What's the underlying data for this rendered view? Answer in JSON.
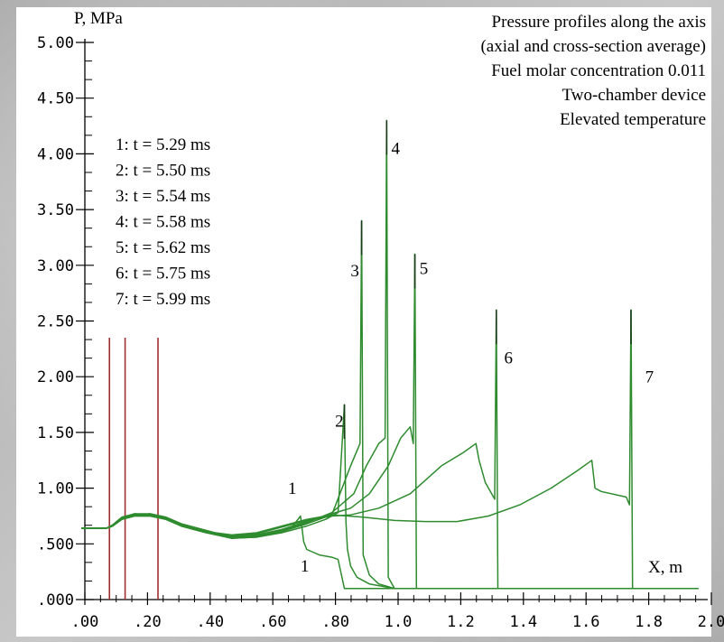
{
  "chart_data": {
    "type": "line",
    "title_lines": [
      "Pressure profiles along the axis",
      "(axial and cross-section average)",
      "Fuel molar concentration 0.011",
      "Two-chamber device",
      "Elevated temperature"
    ],
    "ylabel": "P, MPa",
    "xlabel": "X, m",
    "xlim": [
      0,
      2.0
    ],
    "ylim": [
      0,
      5.0
    ],
    "x_ticks": [
      ".00",
      ".20",
      ".40",
      ".60",
      ".80",
      "1.0",
      "1.2",
      "1.4",
      "1.6",
      "1.8",
      "2.0"
    ],
    "x_tick_values": [
      0,
      0.2,
      0.4,
      0.6,
      0.8,
      1.0,
      1.2,
      1.4,
      1.6,
      1.8,
      2.0
    ],
    "y_ticks": [
      ".000",
      ".500",
      "1.00",
      "1.50",
      "2.00",
      "2.50",
      "3.00",
      "3.50",
      "4.00",
      "4.50",
      "5.00"
    ],
    "y_tick_values": [
      0,
      0.5,
      1.0,
      1.5,
      2.0,
      2.5,
      3.0,
      3.5,
      4.0,
      4.5,
      5.0
    ],
    "legend": [
      "1: t = 5.29 ms",
      "2: t = 5.50 ms",
      "3: t = 5.54 ms",
      "4: t = 5.58 ms",
      "5: t = 5.62 ms",
      "6: t = 5.75 ms",
      "7: t = 5.99 ms"
    ],
    "vertical_markers": [
      0.09,
      0.14,
      0.245
    ],
    "marker_top": 2.35,
    "colors": {
      "line": "#2e8b2e",
      "marker": "#a03030",
      "spike_tip": "#1a3a1a"
    },
    "series": [
      {
        "label": "1",
        "label_at": [
          0.66,
          0.95
        ],
        "x": [
          0,
          0.08,
          0.1,
          0.13,
          0.17,
          0.22,
          0.27,
          0.32,
          0.4,
          0.48,
          0.55,
          0.62,
          0.67,
          0.7,
          0.71,
          0.72,
          0.76,
          0.8,
          0.82,
          0.84,
          1.0,
          1.2,
          1.4,
          1.6,
          1.8,
          1.97
        ],
        "y": [
          0.64,
          0.64,
          0.66,
          0.73,
          0.76,
          0.77,
          0.74,
          0.68,
          0.62,
          0.56,
          0.57,
          0.6,
          0.64,
          0.75,
          0.52,
          0.45,
          0.4,
          0.38,
          0.36,
          0.1,
          0.1,
          0.1,
          0.1,
          0.1,
          0.1,
          0.1
        ]
      },
      {
        "label": "1",
        "label_at": [
          0.7,
          0.25
        ],
        "x": [],
        "y": []
      },
      {
        "label": "2",
        "label_at": [
          0.81,
          1.55
        ],
        "x": [
          0,
          0.08,
          0.1,
          0.13,
          0.17,
          0.22,
          0.27,
          0.32,
          0.4,
          0.48,
          0.56,
          0.64,
          0.72,
          0.78,
          0.82,
          0.84,
          0.845,
          0.85,
          0.86,
          0.88,
          0.92,
          1.0,
          1.2,
          1.5,
          1.8,
          1.97
        ],
        "y": [
          0.64,
          0.64,
          0.66,
          0.73,
          0.77,
          0.77,
          0.74,
          0.67,
          0.61,
          0.55,
          0.56,
          0.6,
          0.66,
          0.72,
          0.78,
          1.75,
          0.7,
          0.45,
          0.3,
          0.2,
          0.14,
          0.1,
          0.1,
          0.1,
          0.1,
          0.1
        ]
      },
      {
        "label": "3",
        "label_at": [
          0.86,
          2.9
        ],
        "x": [
          0,
          0.08,
          0.1,
          0.13,
          0.17,
          0.22,
          0.27,
          0.32,
          0.4,
          0.48,
          0.56,
          0.64,
          0.72,
          0.8,
          0.86,
          0.89,
          0.895,
          0.9,
          0.92,
          0.95,
          1.0,
          1.3,
          1.6,
          1.97
        ],
        "y": [
          0.64,
          0.64,
          0.67,
          0.74,
          0.77,
          0.76,
          0.73,
          0.66,
          0.6,
          0.55,
          0.56,
          0.61,
          0.68,
          0.76,
          1.2,
          1.4,
          3.4,
          0.4,
          0.22,
          0.14,
          0.1,
          0.1,
          0.1,
          0.1
        ]
      },
      {
        "label": "4",
        "label_at": [
          0.99,
          4.0
        ],
        "x": [
          0,
          0.08,
          0.1,
          0.13,
          0.17,
          0.22,
          0.27,
          0.32,
          0.4,
          0.48,
          0.56,
          0.64,
          0.72,
          0.8,
          0.87,
          0.91,
          0.95,
          0.97,
          0.975,
          0.98,
          1.0,
          1.2,
          1.5,
          1.97
        ],
        "y": [
          0.64,
          0.64,
          0.66,
          0.73,
          0.76,
          0.76,
          0.73,
          0.66,
          0.6,
          0.55,
          0.57,
          0.62,
          0.69,
          0.78,
          0.95,
          1.2,
          1.4,
          1.45,
          4.3,
          0.2,
          0.1,
          0.1,
          0.1,
          0.1
        ]
      },
      {
        "label": "5",
        "label_at": [
          1.08,
          2.92
        ],
        "x": [
          0,
          0.08,
          0.1,
          0.13,
          0.17,
          0.22,
          0.27,
          0.32,
          0.4,
          0.48,
          0.56,
          0.64,
          0.72,
          0.8,
          0.86,
          0.92,
          0.98,
          1.02,
          1.05,
          1.06,
          1.065,
          1.07,
          1.2,
          1.5,
          1.97
        ],
        "y": [
          0.64,
          0.64,
          0.66,
          0.73,
          0.76,
          0.76,
          0.73,
          0.66,
          0.6,
          0.56,
          0.58,
          0.63,
          0.7,
          0.77,
          0.82,
          0.95,
          1.2,
          1.45,
          1.55,
          1.4,
          3.1,
          0.1,
          0.1,
          0.1,
          0.1
        ]
      },
      {
        "label": "6",
        "label_at": [
          1.35,
          2.12
        ],
        "x": [
          0,
          0.08,
          0.1,
          0.13,
          0.17,
          0.22,
          0.27,
          0.32,
          0.4,
          0.48,
          0.56,
          0.64,
          0.72,
          0.8,
          0.86,
          0.95,
          1.05,
          1.15,
          1.22,
          1.26,
          1.27,
          1.29,
          1.31,
          1.32,
          1.325,
          1.33,
          1.5,
          1.97
        ],
        "y": [
          0.64,
          0.64,
          0.66,
          0.72,
          0.75,
          0.75,
          0.72,
          0.66,
          0.6,
          0.57,
          0.59,
          0.65,
          0.71,
          0.75,
          0.76,
          0.82,
          0.95,
          1.2,
          1.32,
          1.4,
          1.25,
          1.05,
          0.95,
          0.9,
          2.6,
          0.1,
          0.1,
          0.1
        ]
      },
      {
        "label": "7",
        "label_at": [
          1.8,
          1.95
        ],
        "x": [
          0,
          0.08,
          0.1,
          0.13,
          0.17,
          0.22,
          0.27,
          0.32,
          0.4,
          0.48,
          0.56,
          0.64,
          0.72,
          0.8,
          0.9,
          1.0,
          1.1,
          1.2,
          1.3,
          1.4,
          1.5,
          1.58,
          1.63,
          1.64,
          1.66,
          1.74,
          1.75,
          1.755,
          1.76,
          1.97
        ],
        "y": [
          0.64,
          0.64,
          0.66,
          0.72,
          0.75,
          0.75,
          0.72,
          0.66,
          0.61,
          0.58,
          0.6,
          0.66,
          0.72,
          0.76,
          0.74,
          0.71,
          0.7,
          0.7,
          0.75,
          0.85,
          1.0,
          1.15,
          1.25,
          1.0,
          0.97,
          0.92,
          0.85,
          2.6,
          0.1,
          0.1
        ]
      }
    ]
  }
}
